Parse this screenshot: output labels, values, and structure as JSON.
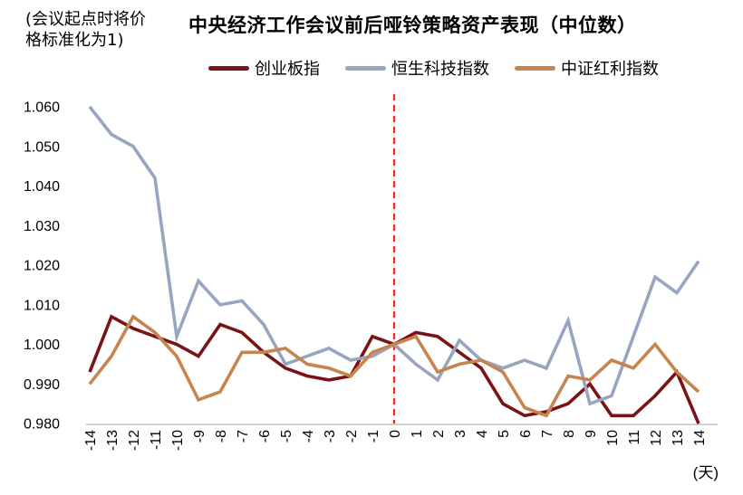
{
  "note": {
    "lines": [
      "(会议起点时将价",
      "格标准化为1)"
    ]
  },
  "chart_data": {
    "type": "line",
    "title": "中央经济工作会议前后哑铃策略资产表现（中位数）",
    "xlabel": "(天)",
    "ylabel": "",
    "grid": false,
    "legend_position": "top",
    "ylim": [
      0.98,
      1.06
    ],
    "y_ticks": [
      "1.060",
      "1.050",
      "1.040",
      "1.030",
      "1.020",
      "1.010",
      "1.000",
      "0.990",
      "0.980"
    ],
    "x": [
      -14,
      -13,
      -12,
      -11,
      -10,
      -9,
      -8,
      -7,
      -6,
      -5,
      -4,
      -3,
      -2,
      -1,
      0,
      1,
      2,
      3,
      4,
      5,
      6,
      7,
      8,
      9,
      10,
      11,
      12,
      13,
      14
    ],
    "event_line": {
      "x": 0,
      "style": "dashed",
      "color": "#fb241c"
    },
    "axis_color": "#bfbfbf",
    "series": [
      {
        "name": "创业板指",
        "color": "#7a1315",
        "values": [
          0.993,
          1.007,
          1.004,
          1.002,
          1.0,
          0.997,
          1.005,
          1.003,
          0.998,
          0.994,
          0.992,
          0.991,
          0.992,
          1.002,
          1.0,
          1.003,
          1.002,
          0.998,
          0.994,
          0.985,
          0.982,
          0.983,
          0.985,
          0.99,
          0.982,
          0.982,
          0.987,
          0.993,
          0.98
        ]
      },
      {
        "name": "恒生科技指数",
        "color": "#98a5c1",
        "values": [
          1.06,
          1.053,
          1.05,
          1.042,
          1.002,
          1.016,
          1.01,
          1.011,
          1.005,
          0.995,
          0.997,
          0.999,
          0.996,
          0.997,
          1.0,
          0.995,
          0.991,
          1.001,
          0.996,
          0.994,
          0.996,
          0.994,
          1.006,
          0.985,
          0.987,
          1.002,
          1.017,
          1.013,
          1.021
        ]
      },
      {
        "name": "中证红利指数",
        "color": "#c6854e",
        "values": [
          0.99,
          0.997,
          1.007,
          1.003,
          0.997,
          0.986,
          0.988,
          0.998,
          0.998,
          0.999,
          0.995,
          0.994,
          0.992,
          0.998,
          1.0,
          1.002,
          0.993,
          0.995,
          0.996,
          0.993,
          0.984,
          0.982,
          0.992,
          0.991,
          0.996,
          0.994,
          1.0,
          0.993,
          0.988
        ]
      }
    ]
  }
}
